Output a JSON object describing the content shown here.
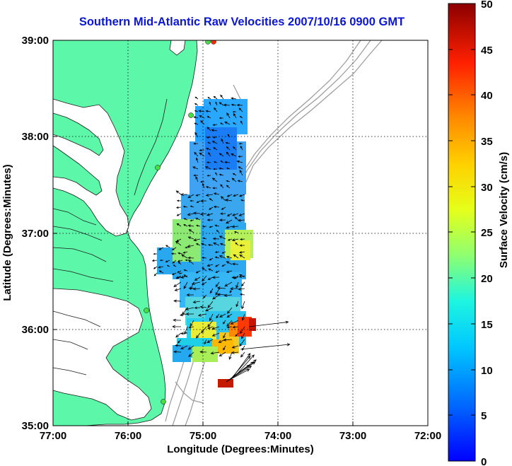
{
  "title": "Southern Mid-Atlantic Raw Velocities 2007/10/16 0900 GMT",
  "map": {
    "xlabel": "Longitude (Degrees:Minutes)",
    "ylabel": "Latitude (Degrees:Minutes)",
    "x_ticks": [
      "77:00",
      "76:00",
      "75:00",
      "74:00",
      "73:00",
      "72:00"
    ],
    "y_ticks": [
      "39:00",
      "38:00",
      "37:00",
      "36:00",
      "35:00"
    ],
    "grid": "dotted",
    "land_color": "#5df7a9",
    "water_color": "#ffffff",
    "bathymetry_color": "#9a9a9a"
  },
  "colorbar": {
    "label": "Surface Velocity (cm/s)",
    "ticks": [
      "50",
      "45",
      "40",
      "35",
      "30",
      "25",
      "20",
      "15",
      "10",
      "5",
      "0"
    ],
    "range": [
      0,
      50
    ],
    "colormap": "jet"
  }
}
